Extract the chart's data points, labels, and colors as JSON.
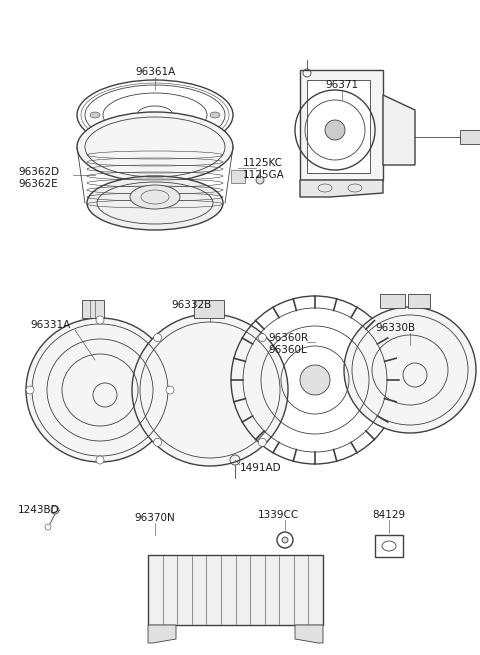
{
  "bg_color": "#ffffff",
  "line_color": "#404040",
  "label_color": "#1a1a1a",
  "figsize": [
    4.8,
    6.55
  ],
  "dpi": 100,
  "xlim": [
    0,
    480
  ],
  "ylim": [
    0,
    655
  ]
}
